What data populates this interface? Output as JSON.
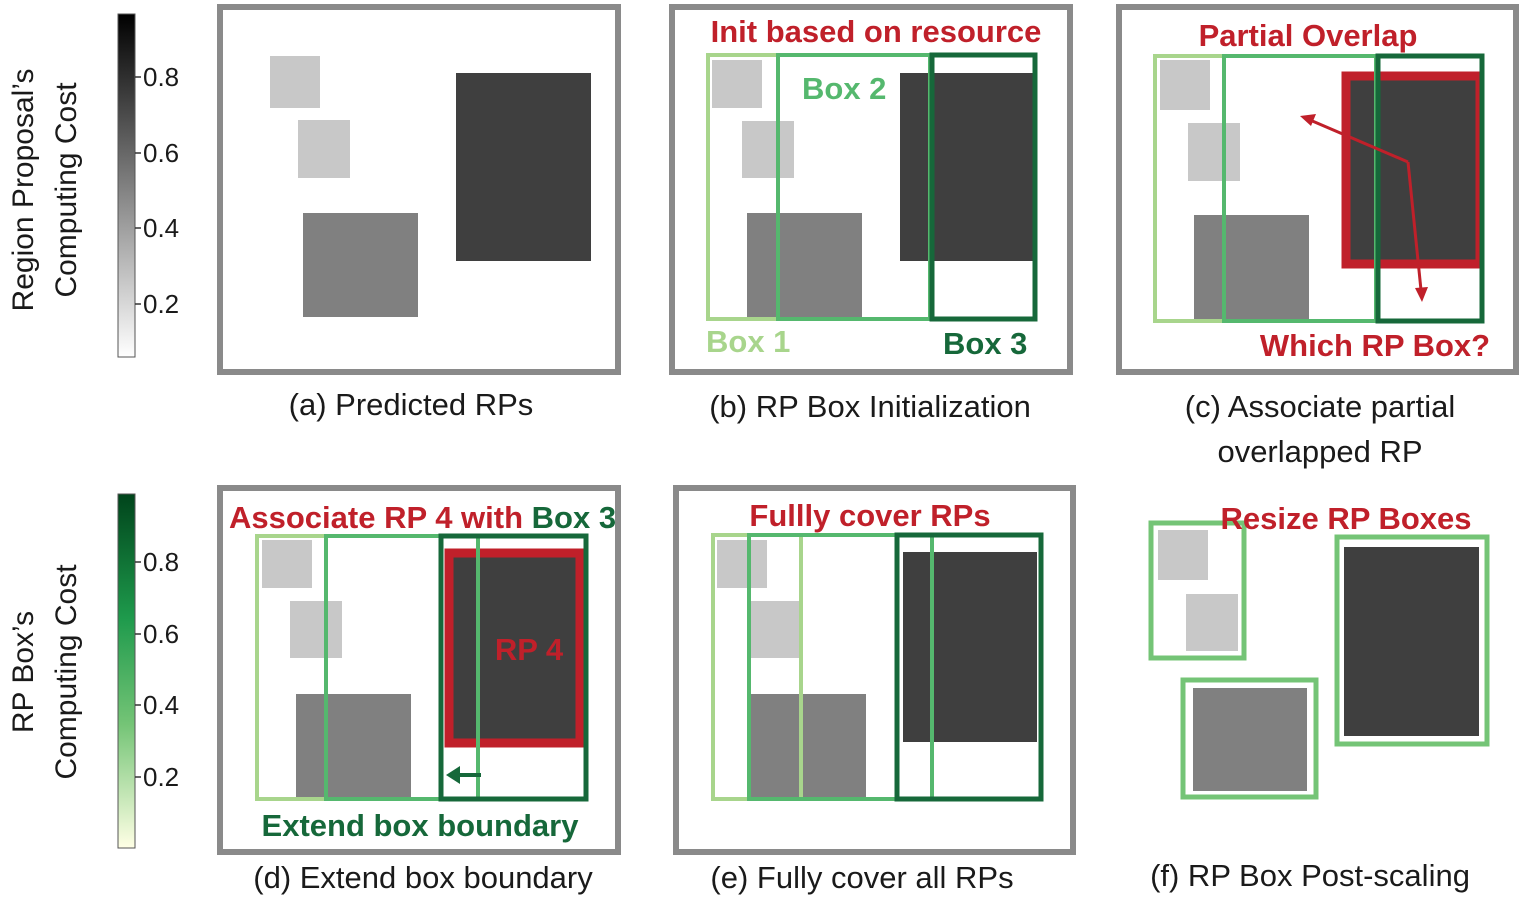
{
  "colors": {
    "red": "#c0202a",
    "box1": "#a8d58c",
    "box2": "#55b86e",
    "box3": "#16683a",
    "panel_border": "#8a8a8a",
    "rp_light": "#c8c8c8",
    "rp_mid": "#808080",
    "rp_dark": "#3f3f3f"
  },
  "colorbars": {
    "rp_cost": {
      "label_line1": "Region Proposal’s",
      "label_line2": "Computing Cost",
      "ticks": [
        "0.8",
        "0.6",
        "0.4",
        "0.2"
      ],
      "colormap": "grays"
    },
    "box_cost": {
      "label_line1": "RP Box’s",
      "label_line2": "Computing Cost",
      "ticks": [
        "0.8",
        "0.6",
        "0.4",
        "0.2"
      ],
      "colormap": "greens"
    }
  },
  "panels": {
    "a": {
      "caption": "(a) Predicted RPs"
    },
    "b": {
      "caption": "(b) RP Box Initialization",
      "title": "Init based on resource",
      "box1": "Box 1",
      "box2": "Box 2",
      "box3": "Box 3"
    },
    "c": {
      "caption_line1": "(c) Associate partial",
      "caption_line2": "overlapped RP",
      "title": "Partial Overlap",
      "question": "Which RP Box?"
    },
    "d": {
      "caption": "(d) Extend box boundary",
      "title_red": "Associate RP 4 with ",
      "title_green": "Box 3",
      "rp_label": "RP 4",
      "bottom": "Extend box boundary"
    },
    "e": {
      "caption": "(e) Fully cover all RPs",
      "title": "Fullly cover RPs"
    },
    "f": {
      "caption": "(f) RP Box Post-scaling",
      "title": "Resize RP Boxes"
    }
  }
}
